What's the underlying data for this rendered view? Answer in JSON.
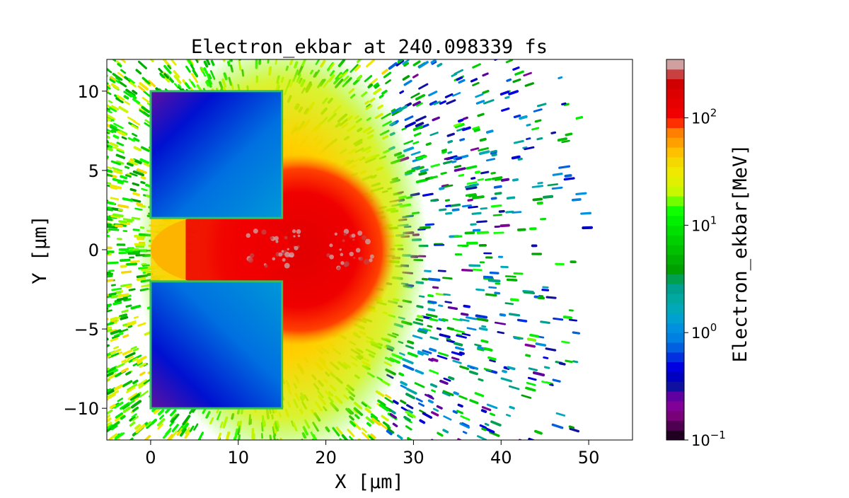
{
  "chart_data": {
    "type": "heatmap",
    "title": "Electron_ekbar at 240.098339 fs",
    "xlabel": "X  [$\\mu m$]",
    "xlabel_display": "X  [μm]",
    "ylabel_display": "Y  [μm]",
    "xlim": [
      -5,
      55
    ],
    "ylim": [
      -12,
      12
    ],
    "xticks": [
      0,
      10,
      20,
      30,
      40,
      50
    ],
    "xtick_labels": [
      "0",
      "10",
      "20",
      "30",
      "40",
      "50"
    ],
    "yticks": [
      -10,
      -5,
      0,
      5,
      10
    ],
    "ytick_labels": [
      "−10",
      "−5",
      "0",
      "5",
      "10"
    ],
    "colorbar": {
      "label": "Electron_ekbar[MeV]",
      "scale": "log",
      "range": [
        0.1,
        350
      ],
      "ticks": [
        0.1,
        1,
        10,
        100
      ],
      "tick_labels": [
        [
          "10",
          "−1"
        ],
        [
          "10",
          "0"
        ],
        [
          "10",
          "1"
        ],
        [
          "10",
          "2"
        ]
      ],
      "colors": [
        "#200020",
        "#500050",
        "#780078",
        "#800098",
        "#6000a0",
        "#1010a0",
        "#0000c0",
        "#0000e0",
        "#0030e0",
        "#0060e0",
        "#0080e0",
        "#0090e0",
        "#00a0d0",
        "#00a8b8",
        "#00a8a0",
        "#00a090",
        "#00a050",
        "#00a000",
        "#00b000",
        "#00c000",
        "#00d000",
        "#00e000",
        "#00f000",
        "#10ff00",
        "#70ff00",
        "#c8f800",
        "#e0f000",
        "#f0e800",
        "#f5d800",
        "#ffc000",
        "#ffa000",
        "#ff8000",
        "#ff3000",
        "#f00000",
        "#e60000",
        "#dd0000",
        "#d00000",
        "#c84040",
        "#d09fa0"
      ]
    },
    "features": [
      {
        "name": "upper target block",
        "x": [
          0,
          15
        ],
        "y": [
          2,
          10
        ],
        "ekbar_MeV": [
          0.3,
          1.5
        ]
      },
      {
        "name": "lower target block",
        "x": [
          0,
          15
        ],
        "y": [
          -10,
          -2
        ],
        "ekbar_MeV": [
          0.3,
          1.5
        ]
      },
      {
        "name": "hot channel / plume",
        "x": [
          3,
          27
        ],
        "y": [
          -5,
          5
        ],
        "ekbar_MeV": [
          80,
          300
        ]
      },
      {
        "name": "scattered electrons",
        "x": [
          -5,
          50
        ],
        "y": [
          -12,
          12
        ],
        "ekbar_MeV": [
          0.2,
          30
        ]
      }
    ]
  }
}
